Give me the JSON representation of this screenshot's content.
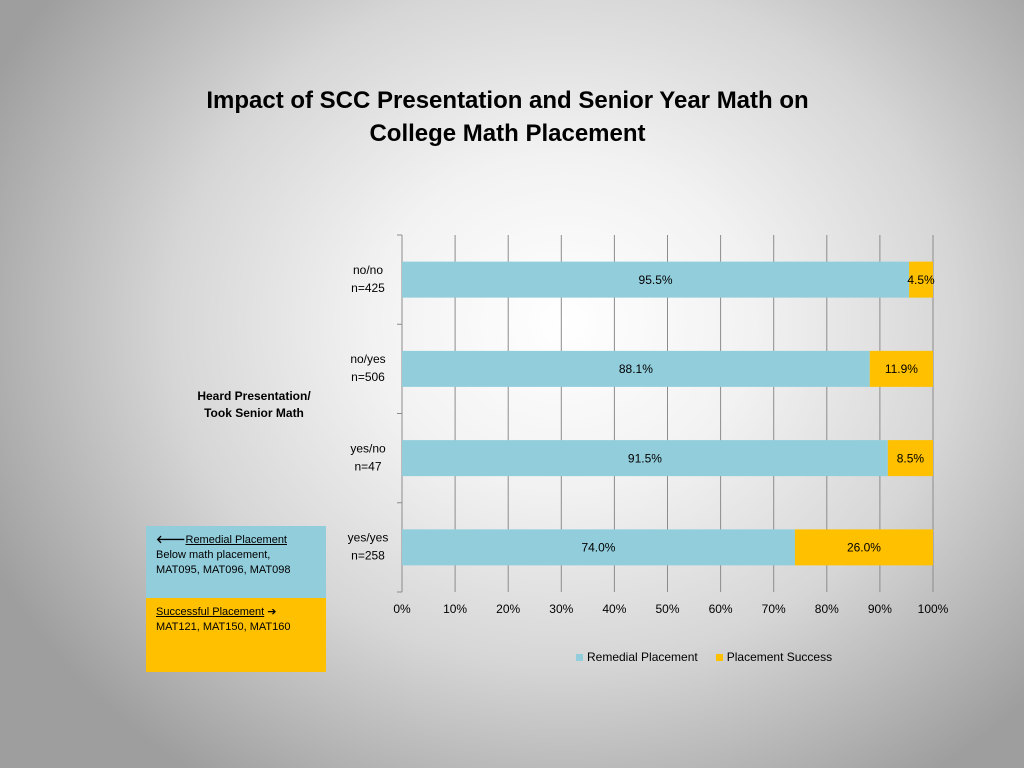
{
  "title": {
    "line1": "Impact of SCC Presentation and Senior Year Math on",
    "line2": "College Math Placement"
  },
  "y_axis_label": {
    "line1": "Heard Presentation/",
    "line2": "Took Senior Math"
  },
  "legend_boxes": {
    "remedial": {
      "arrow": "🡐",
      "heading": "Remedial Placement",
      "line1": "Below math placement,",
      "line2": "MAT095, MAT096, MAT098"
    },
    "success": {
      "heading": "Successful Placement",
      "arrow": "➔",
      "line1": "MAT121, MAT150, MAT160"
    }
  },
  "colors": {
    "remedial": "#92cddc",
    "success": "#ffc000",
    "grid": "#8c8c8c"
  },
  "chart_data": {
    "type": "bar",
    "orientation": "horizontal",
    "stacked": true,
    "title": "Impact of SCC Presentation and Senior Year Math on College Math Placement",
    "ylabel": "Heard Presentation/ Took Senior Math",
    "xlabel": "",
    "xlim": [
      0,
      100
    ],
    "x_ticks": [
      "0%",
      "10%",
      "20%",
      "30%",
      "40%",
      "50%",
      "60%",
      "70%",
      "80%",
      "90%",
      "100%"
    ],
    "grid": true,
    "legend_position": "bottom",
    "categories": [
      {
        "label1": "no/no",
        "label2": "n=425"
      },
      {
        "label1": "no/yes",
        "label2": "n=506"
      },
      {
        "label1": "yes/no",
        "label2": "n=47"
      },
      {
        "label1": "yes/yes",
        "label2": "n=258"
      }
    ],
    "series": [
      {
        "name": "Remedial Placement",
        "color": "#92cddc",
        "values": [
          95.5,
          88.1,
          91.5,
          74.0
        ],
        "labels": [
          "95.5%",
          "88.1%",
          "91.5%",
          "74.0%"
        ]
      },
      {
        "name": "Placement Success",
        "color": "#ffc000",
        "values": [
          4.5,
          11.9,
          8.5,
          26.0
        ],
        "labels": [
          "4.5%",
          "11.9%",
          "8.5%",
          "26.0%"
        ]
      }
    ]
  }
}
